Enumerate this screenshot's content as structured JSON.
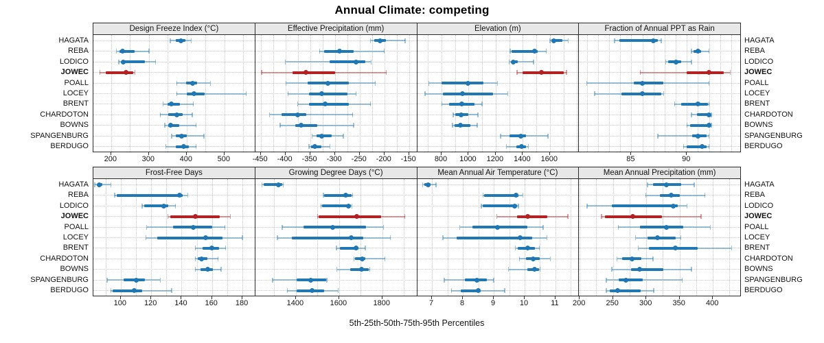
{
  "title": "Annual Climate: competing",
  "caption": "5th-25th-50th-75th-95th Percentiles",
  "stations": [
    "HAGATA",
    "REBA",
    "LODICO",
    "JOWEC",
    "POALL",
    "LOCEY",
    "BRENT",
    "CHARDOTON",
    "BOWNS",
    "SPANGENBURG",
    "BERDUGO"
  ],
  "highlight_station": "JOWEC",
  "colors": {
    "series": "#1f77b4",
    "series_light": "rgba(31,119,180,0.45)",
    "highlight": "#b22222",
    "highlight_light": "rgba(178,34,34,0.45)",
    "panel_header_bg": "#e8e8e8",
    "grid": "#c9c9c9",
    "border": "#2a2a2a"
  },
  "percentile_labels": [
    "5th",
    "25th",
    "50th",
    "75th",
    "95th"
  ],
  "chart_data": [
    {
      "type": "dot-whisker",
      "row": 0,
      "col": 0,
      "title": "Design Freeze Index (°C)",
      "xlim": [
        153,
        580
      ],
      "xticks": [
        200,
        300,
        400,
        500
      ],
      "grid_step": 50,
      "series": [
        {
          "name": "HAGATA",
          "values": [
            357,
            371,
            385,
            397,
            412
          ]
        },
        {
          "name": "REBA",
          "values": [
            214,
            222,
            231,
            262,
            300
          ]
        },
        {
          "name": "LODICO",
          "values": [
            220,
            227,
            233,
            290,
            318
          ]
        },
        {
          "name": "JOWEC",
          "values": [
            170,
            186,
            240,
            258,
            263
          ]
        },
        {
          "name": "POALL",
          "values": [
            374,
            398,
            415,
            428,
            463
          ]
        },
        {
          "name": "LOCEY",
          "values": [
            374,
            400,
            420,
            447,
            558
          ]
        },
        {
          "name": "BRENT",
          "values": [
            338,
            350,
            360,
            383,
            418
          ]
        },
        {
          "name": "CHARDOTON",
          "values": [
            330,
            352,
            374,
            390,
            415
          ]
        },
        {
          "name": "BOWNS",
          "values": [
            342,
            352,
            357,
            380,
            425
          ]
        },
        {
          "name": "SPANGENBURG",
          "values": [
            360,
            372,
            386,
            400,
            446
          ]
        },
        {
          "name": "BERDUGO",
          "values": [
            345,
            372,
            393,
            405,
            425
          ]
        }
      ]
    },
    {
      "type": "dot-whisker",
      "row": 0,
      "col": 1,
      "title": "Effective Precipitation (mm)",
      "xlim": [
        -461,
        -135
      ],
      "xticks": [
        -450,
        -400,
        -350,
        -300,
        -250,
        -200,
        -150
      ],
      "grid_step": 25,
      "series": [
        {
          "name": "HAGATA",
          "values": [
            -228,
            -221,
            -208,
            -197,
            -158
          ]
        },
        {
          "name": "REBA",
          "values": [
            -331,
            -322,
            -291,
            -262,
            -200
          ]
        },
        {
          "name": "LODICO",
          "values": [
            -400,
            -310,
            -257,
            -238,
            -227
          ]
        },
        {
          "name": "JOWEC",
          "values": [
            -448,
            -385,
            -358,
            -300,
            -196
          ]
        },
        {
          "name": "POALL",
          "values": [
            -399,
            -355,
            -314,
            -272,
            -218
          ]
        },
        {
          "name": "LOCEY",
          "values": [
            -395,
            -352,
            -326,
            -274,
            -257
          ]
        },
        {
          "name": "BRENT",
          "values": [
            -375,
            -352,
            -320,
            -272,
            -228
          ]
        },
        {
          "name": "CHARDOTON",
          "values": [
            -432,
            -408,
            -375,
            -358,
            -264
          ]
        },
        {
          "name": "BOWNS",
          "values": [
            -411,
            -380,
            -368,
            -335,
            -262
          ]
        },
        {
          "name": "SPANGENBURG",
          "values": [
            -346,
            -337,
            -326,
            -306,
            -283
          ]
        },
        {
          "name": "BERDUGO",
          "values": [
            -352,
            -348,
            -340,
            -327,
            -310
          ]
        }
      ]
    },
    {
      "type": "dot-whisker",
      "row": 0,
      "col": 2,
      "title": "Elevation (m)",
      "xlim": [
        620,
        1810
      ],
      "xticks": [
        800,
        1000,
        1200,
        1400,
        1600
      ],
      "grid_step": 100,
      "series": [
        {
          "name": "HAGATA",
          "values": [
            1600,
            1612,
            1627,
            1693,
            1735
          ]
        },
        {
          "name": "REBA",
          "values": [
            1308,
            1316,
            1485,
            1509,
            1574
          ]
        },
        {
          "name": "LODICO",
          "values": [
            1300,
            1315,
            1330,
            1365,
            1478
          ]
        },
        {
          "name": "JOWEC",
          "values": [
            1358,
            1400,
            1540,
            1700,
            1722
          ]
        },
        {
          "name": "POALL",
          "values": [
            707,
            800,
            995,
            1110,
            1212
          ]
        },
        {
          "name": "LOCEY",
          "values": [
            678,
            810,
            955,
            1180,
            1288
          ]
        },
        {
          "name": "BRENT",
          "values": [
            802,
            855,
            950,
            1042,
            1100
          ]
        },
        {
          "name": "CHARDOTON",
          "values": [
            886,
            900,
            945,
            1000,
            1068
          ]
        },
        {
          "name": "BOWNS",
          "values": [
            881,
            895,
            937,
            1015,
            1064
          ]
        },
        {
          "name": "SPANGENBURG",
          "values": [
            1237,
            1300,
            1386,
            1424,
            1585
          ]
        },
        {
          "name": "BERDUGO",
          "values": [
            1280,
            1355,
            1393,
            1424,
            1440
          ]
        }
      ]
    },
    {
      "type": "dot-whisker",
      "row": 0,
      "col": 3,
      "title": "Fraction of Annual PPT as Rain",
      "xlim": [
        80.3,
        94.8
      ],
      "xticks": [
        85,
        90
      ],
      "grid_step": 1,
      "series": [
        {
          "name": "HAGATA",
          "values": [
            83.5,
            83.9,
            87.0,
            87.4,
            87.7
          ]
        },
        {
          "name": "REBA",
          "values": [
            90.4,
            90.6,
            91.0,
            91.3,
            92.0
          ]
        },
        {
          "name": "LODICO",
          "values": [
            88.1,
            88.3,
            89.0,
            89.5,
            90.4
          ]
        },
        {
          "name": "JOWEC",
          "values": [
            85.8,
            90.0,
            92.0,
            93.3,
            93.9
          ]
        },
        {
          "name": "POALL",
          "values": [
            81.0,
            85.2,
            86.0,
            87.9,
            92.0
          ]
        },
        {
          "name": "LOCEY",
          "values": [
            81.7,
            84.1,
            86.0,
            87.7,
            87.9
          ]
        },
        {
          "name": "BRENT",
          "values": [
            88.9,
            89.5,
            91.0,
            91.9,
            92.0
          ]
        },
        {
          "name": "CHARDOTON",
          "values": [
            90.4,
            90.9,
            92.0,
            92.1,
            92.2
          ]
        },
        {
          "name": "BOWNS",
          "values": [
            90.0,
            90.3,
            92.0,
            92.1,
            92.2
          ]
        },
        {
          "name": "SPANGENBURG",
          "values": [
            87.4,
            90.5,
            91.0,
            91.8,
            92.0
          ]
        },
        {
          "name": "BERDUGO",
          "values": [
            89.7,
            90.0,
            91.4,
            91.8,
            92.0
          ]
        }
      ]
    },
    {
      "type": "dot-whisker",
      "row": 1,
      "col": 0,
      "title": "Frost-Free Days",
      "xlim": [
        82,
        188
      ],
      "xticks": [
        100,
        120,
        140,
        160,
        180
      ],
      "grid_step": 10,
      "series": [
        {
          "name": "HAGATA",
          "values": [
            83,
            84.5,
            86,
            88,
            93.5
          ]
        },
        {
          "name": "REBA",
          "values": [
            96,
            97.5,
            138.5,
            140.5,
            144
          ]
        },
        {
          "name": "LODICO",
          "values": [
            114,
            115.5,
            128.5,
            131,
            136
          ]
        },
        {
          "name": "JOWEC",
          "values": [
            131,
            132.5,
            149,
            165,
            172
          ]
        },
        {
          "name": "POALL",
          "values": [
            117,
            134.5,
            147.5,
            160,
            168.5
          ]
        },
        {
          "name": "LOCEY",
          "values": [
            116.5,
            124,
            156,
            167,
            180
          ]
        },
        {
          "name": "BRENT",
          "values": [
            149,
            154,
            160,
            164.5,
            169
          ]
        },
        {
          "name": "CHARDOTON",
          "values": [
            149,
            150.5,
            153,
            157,
            164
          ]
        },
        {
          "name": "BOWNS",
          "values": [
            149,
            152.5,
            157,
            160.5,
            166
          ]
        },
        {
          "name": "SPANGENBURG",
          "values": [
            91,
            102,
            110,
            116,
            126
          ]
        },
        {
          "name": "BERDUGO",
          "values": [
            93.5,
            94.5,
            109,
            114,
            133.5
          ]
        }
      ]
    },
    {
      "type": "dot-whisker",
      "row": 1,
      "col": 1,
      "title": "Growing Degree Days (°C)",
      "xlim": [
        1212,
        1958
      ],
      "xticks": [
        1400,
        1600,
        1800
      ],
      "grid_step": 100,
      "series": [
        {
          "name": "HAGATA",
          "values": [
            1243,
            1252,
            1320,
            1336,
            1342
          ]
        },
        {
          "name": "REBA",
          "values": [
            1527,
            1532,
            1630,
            1658,
            1663
          ]
        },
        {
          "name": "LODICO",
          "values": [
            1516,
            1521,
            1642,
            1655,
            1659
          ]
        },
        {
          "name": "JOWEC",
          "values": [
            1500,
            1506,
            1682,
            1795,
            1904
          ]
        },
        {
          "name": "POALL",
          "values": [
            1337,
            1435,
            1570,
            1725,
            1805
          ]
        },
        {
          "name": "LOCEY",
          "values": [
            1314,
            1380,
            1655,
            1712,
            1838
          ]
        },
        {
          "name": "BRENT",
          "values": [
            1587,
            1605,
            1677,
            1690,
            1722
          ]
        },
        {
          "name": "CHARDOTON",
          "values": [
            1669,
            1675,
            1708,
            1722,
            1812
          ]
        },
        {
          "name": "BOWNS",
          "values": [
            1590,
            1650,
            1704,
            1738,
            1742
          ]
        },
        {
          "name": "SPANGENBURG",
          "values": [
            1293,
            1404,
            1470,
            1540,
            1543
          ]
        },
        {
          "name": "BERDUGO",
          "values": [
            1360,
            1405,
            1476,
            1530,
            1595
          ]
        }
      ]
    },
    {
      "type": "dot-whisker",
      "row": 1,
      "col": 2,
      "title": "Mean Annual Air Temperature (°C)",
      "xlim": [
        6.52,
        11.74
      ],
      "xticks": [
        7,
        8,
        9,
        10,
        11
      ],
      "grid_step": 0.5,
      "series": [
        {
          "name": "HAGATA",
          "values": [
            6.7,
            6.75,
            6.87,
            6.95,
            7.13
          ]
        },
        {
          "name": "REBA",
          "values": [
            8.65,
            8.68,
            9.72,
            9.81,
            9.94
          ]
        },
        {
          "name": "LODICO",
          "values": [
            8.6,
            8.64,
            9.67,
            9.76,
            9.8
          ]
        },
        {
          "name": "JOWEC",
          "values": [
            9.1,
            9.75,
            10.1,
            10.73,
            11.4
          ]
        },
        {
          "name": "POALL",
          "values": [
            7.9,
            8.3,
            9.13,
            10.1,
            10.6
          ]
        },
        {
          "name": "LOCEY",
          "values": [
            7.35,
            7.8,
            9.85,
            10.25,
            10.72
          ]
        },
        {
          "name": "BRENT",
          "values": [
            9.7,
            9.78,
            10.1,
            10.33,
            10.48
          ]
        },
        {
          "name": "CHARDOTON",
          "values": [
            9.83,
            10.04,
            10.27,
            10.5,
            10.83
          ]
        },
        {
          "name": "BOWNS",
          "values": [
            9.48,
            10.1,
            10.33,
            10.47,
            10.5
          ]
        },
        {
          "name": "SPANGENBURG",
          "values": [
            7.4,
            8.07,
            8.46,
            8.78,
            9.0
          ]
        },
        {
          "name": "BERDUGO",
          "values": [
            7.63,
            7.93,
            8.5,
            8.57,
            9.36
          ]
        }
      ]
    },
    {
      "type": "dot-whisker",
      "row": 1,
      "col": 3,
      "title": "Mean Annual Precipitation (mm)",
      "xlim": [
        199,
        441
      ],
      "xticks": [
        200,
        250,
        300,
        350,
        400
      ],
      "grid_step": 25,
      "series": [
        {
          "name": "HAGATA",
          "values": [
            302,
            310,
            330,
            352,
            372
          ]
        },
        {
          "name": "REBA",
          "values": [
            299,
            320,
            337,
            350,
            388
          ]
        },
        {
          "name": "LODICO",
          "values": [
            211,
            248,
            341,
            347,
            361
          ]
        },
        {
          "name": "JOWEC",
          "values": [
            233,
            238,
            280,
            323,
            382
          ]
        },
        {
          "name": "POALL",
          "values": [
            258,
            290,
            330,
            355,
            396
          ]
        },
        {
          "name": "LOCEY",
          "values": [
            284,
            302,
            317,
            344,
            352
          ]
        },
        {
          "name": "BRENT",
          "values": [
            288,
            304,
            344,
            377,
            428
          ]
        },
        {
          "name": "CHARDOTON",
          "values": [
            256,
            264,
            279,
            293,
            310
          ]
        },
        {
          "name": "BOWNS",
          "values": [
            248,
            277,
            290,
            326,
            368
          ]
        },
        {
          "name": "SPANGENBURG",
          "values": [
            240,
            259,
            269,
            295,
            354
          ]
        },
        {
          "name": "BERDUGO",
          "values": [
            240,
            245,
            257,
            292,
            311
          ]
        }
      ]
    }
  ]
}
